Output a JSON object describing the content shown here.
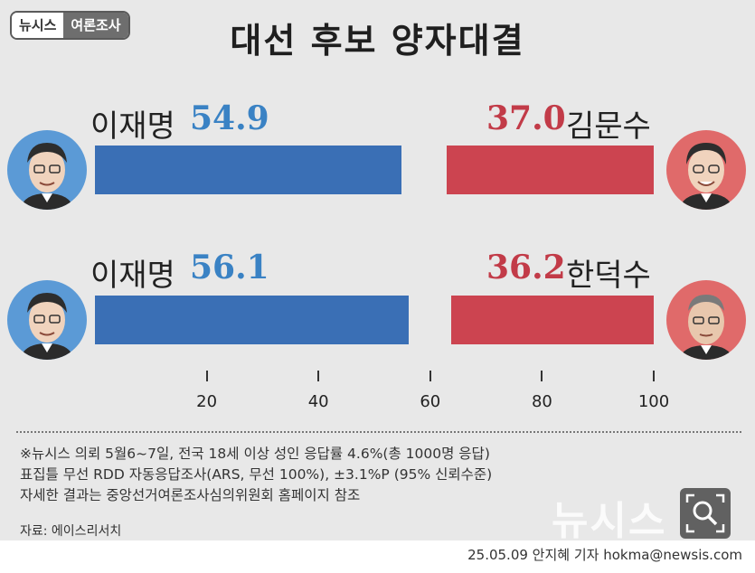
{
  "badge": {
    "brand": "뉴시스",
    "section": "여론조사"
  },
  "title": "대선 후보 양자대결",
  "chart_data": [
    {
      "type": "bar",
      "layout": "horizontal-stacked-100",
      "left_candidate": "이재명",
      "left_value": 54.9,
      "right_candidate": "김문수",
      "right_value": 37.0,
      "left_color": "#3a6fb5",
      "right_color": "#cc4450"
    },
    {
      "type": "bar",
      "layout": "horizontal-stacked-100",
      "left_candidate": "이재명",
      "left_value": 56.1,
      "right_candidate": "한덕수",
      "right_value": 36.2,
      "left_color": "#3a6fb5",
      "right_color": "#cc4450"
    }
  ],
  "labels": {
    "r1_left_value": "54.9",
    "r1_right_value": "37.0",
    "r2_left_value": "56.1",
    "r2_right_value": "36.2"
  },
  "axis": {
    "xlim": [
      0,
      100
    ],
    "ticks": [
      "20",
      "40",
      "60",
      "80",
      "100"
    ]
  },
  "notes": [
    "※뉴시스 의뢰 5월6~7일, 전국 18세 이상 성인 응답률 4.6%(총 1000명 응답)",
    "표집틀 무선 RDD 자동응답조사(ARS, 무선 100%), ±3.1%P (95% 신뢰수준)",
    "자세한 결과는 중앙선거여론조사심의위원회 홈페이지 참조"
  ],
  "source": "자료: 에이스리서치",
  "watermark": "뉴시스",
  "credit": "25.05.09 안지혜 기자 hokma@newsis.com",
  "icons": {
    "avatar": "person-portrait-icon",
    "zoom": "magnifier-icon"
  },
  "colors": {
    "blue": "#3a82c4",
    "red": "#c23b48",
    "avatar_blue_bg": "#5b9ad6",
    "avatar_red_bg": "#e06a6a"
  }
}
